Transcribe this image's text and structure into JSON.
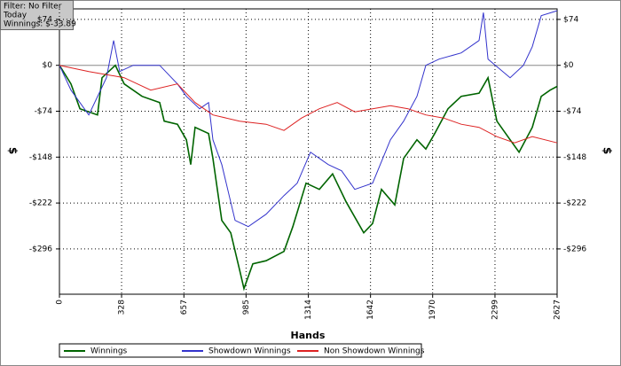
{
  "info": [
    "Filter: No Filter",
    "Today",
    "Winnings: $-33.89"
  ],
  "chart_data": {
    "type": "line",
    "xlabel": "Hands",
    "ylabel": "$",
    "y2label": "$",
    "xlim": [
      0,
      2627
    ],
    "xticks": [
      0,
      328,
      657,
      985,
      1314,
      1642,
      1970,
      2299,
      2627
    ],
    "ylim": [
      -369,
      91
    ],
    "yticks": [
      {
        "value": 74,
        "label": "$74"
      },
      {
        "value": 0,
        "label": "$0"
      },
      {
        "value": -74,
        "label": "-$74"
      },
      {
        "value": -148,
        "label": "-$148"
      },
      {
        "value": -222,
        "label": "-$222"
      },
      {
        "value": -296,
        "label": "-$296"
      }
    ],
    "y2lim": [
      -369,
      91
    ],
    "y2ticks": [
      {
        "value": 74,
        "label": "$74"
      },
      {
        "value": 0,
        "label": "$0"
      },
      {
        "value": -74,
        "label": "-$74"
      },
      {
        "value": -148,
        "label": "-$148"
      },
      {
        "value": -222,
        "label": "-$222"
      },
      {
        "value": -296,
        "label": "-$296"
      }
    ],
    "grid": true,
    "series": [
      {
        "name": "Winnings",
        "color": "#006400",
        "x": [
          0,
          61,
          108,
          155,
          201,
          225,
          295,
          342,
          436,
          529,
          553,
          623,
          670,
          693,
          716,
          787,
          810,
          857,
          904,
          951,
          974,
          1021,
          1091,
          1185,
          1232,
          1302,
          1372,
          1442,
          1513,
          1606,
          1653,
          1700,
          1770,
          1817,
          1887,
          1934,
          1981,
          2051,
          2121,
          2215,
          2262,
          2309,
          2379,
          2426,
          2496,
          2543,
          2590,
          2627
        ],
        "values": [
          0,
          -30,
          -70,
          -75,
          -80,
          -20,
          0,
          -30,
          -50,
          -60,
          -90,
          -95,
          -120,
          -160,
          -100,
          -110,
          -150,
          -250,
          -270,
          -330,
          -360,
          -320,
          -315,
          -300,
          -260,
          -190,
          -200,
          -175,
          -220,
          -270,
          -255,
          -200,
          -225,
          -150,
          -120,
          -135,
          -110,
          -70,
          -50,
          -45,
          -20,
          -90,
          -120,
          -140,
          -100,
          -50,
          -40,
          -34
        ]
      },
      {
        "name": "Showdown Winnings",
        "color": "#3333cc",
        "x": [
          0,
          61,
          155,
          248,
          286,
          318,
          389,
          529,
          623,
          670,
          740,
          787,
          810,
          857,
          927,
          997,
          1091,
          1185,
          1255,
          1325,
          1419,
          1489,
          1559,
          1653,
          1747,
          1817,
          1887,
          1934,
          2004,
          2121,
          2215,
          2238,
          2262,
          2379,
          2449,
          2496,
          2543,
          2627
        ],
        "values": [
          0,
          -40,
          -80,
          -20,
          40,
          -10,
          0,
          0,
          -30,
          -50,
          -70,
          -60,
          -120,
          -160,
          -250,
          -260,
          -240,
          -210,
          -190,
          -140,
          -160,
          -170,
          -200,
          -190,
          -120,
          -90,
          -50,
          0,
          10,
          20,
          40,
          85,
          10,
          -20,
          0,
          30,
          80,
          88
        ]
      },
      {
        "name": "Non Showdown Winnings",
        "color": "#dd2222",
        "x": [
          0,
          155,
          342,
          482,
          623,
          716,
          810,
          951,
          1091,
          1185,
          1278,
          1372,
          1466,
          1559,
          1653,
          1747,
          1840,
          1934,
          2028,
          2121,
          2215,
          2309,
          2402,
          2496,
          2627
        ],
        "values": [
          0,
          -10,
          -20,
          -40,
          -30,
          -60,
          -80,
          -90,
          -95,
          -105,
          -85,
          -70,
          -60,
          -75,
          -70,
          -65,
          -70,
          -80,
          -85,
          -95,
          -100,
          -115,
          -125,
          -115,
          -125
        ]
      }
    ]
  }
}
